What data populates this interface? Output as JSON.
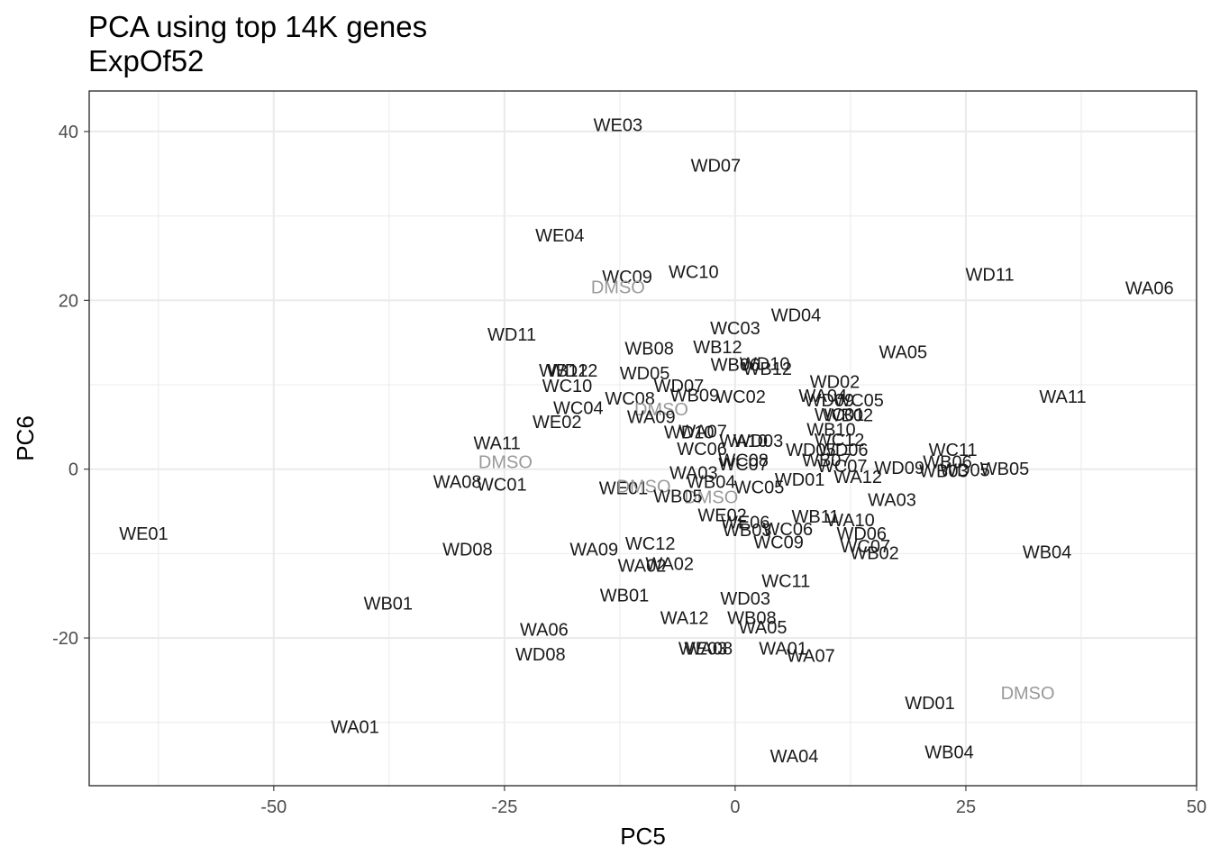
{
  "chart_data": {
    "type": "scatter",
    "title": "PCA using top 14K genes",
    "subtitle": "ExpOf52",
    "xlabel": "PC5",
    "ylabel": "PC6",
    "xlim": [
      -70,
      50
    ],
    "ylim": [
      -37.5,
      44.8
    ],
    "xticks": [
      -50,
      -25,
      0,
      25,
      50
    ],
    "xtick_labels": [
      "-50",
      "-25",
      "0",
      "25",
      "50"
    ],
    "yticks": [
      -20,
      0,
      20,
      40
    ],
    "ytick_labels": [
      "-20",
      "0",
      "20",
      "40"
    ],
    "xminor": [
      -62.5,
      -37.5,
      -12.5,
      12.5,
      37.5
    ],
    "yminor": [
      -30,
      -10,
      10,
      30
    ],
    "grid": true,
    "colors": {
      "sample": "#1a1a1a",
      "control": "#999999"
    },
    "points": [
      {
        "label": "WE03",
        "x": -12.7,
        "y": 40.8,
        "group": "sample"
      },
      {
        "label": "WD07",
        "x": -2.1,
        "y": 36.0,
        "group": "sample"
      },
      {
        "label": "WE04",
        "x": -19.0,
        "y": 27.7,
        "group": "sample"
      },
      {
        "label": "WC09",
        "x": -11.7,
        "y": 22.8,
        "group": "sample"
      },
      {
        "label": "DMSO",
        "x": -12.7,
        "y": 21.6,
        "group": "control"
      },
      {
        "label": "WC10",
        "x": -4.5,
        "y": 23.4,
        "group": "sample"
      },
      {
        "label": "WD11",
        "x": 27.6,
        "y": 23.1,
        "group": "sample"
      },
      {
        "label": "WA06",
        "x": 44.9,
        "y": 21.5,
        "group": "sample"
      },
      {
        "label": "WD04",
        "x": 6.6,
        "y": 18.3,
        "group": "sample"
      },
      {
        "label": "WC03",
        "x": 0.0,
        "y": 16.7,
        "group": "sample"
      },
      {
        "label": "WD11",
        "x": -24.2,
        "y": 16.0,
        "group": "sample"
      },
      {
        "label": "WB08",
        "x": -9.3,
        "y": 14.3,
        "group": "sample"
      },
      {
        "label": "WB12",
        "x": -1.9,
        "y": 14.5,
        "group": "sample"
      },
      {
        "label": "WA05",
        "x": 18.2,
        "y": 13.9,
        "group": "sample"
      },
      {
        "label": "WB06",
        "x": 0.0,
        "y": 12.4,
        "group": "sample"
      },
      {
        "label": "WD10",
        "x": 3.2,
        "y": 12.5,
        "group": "sample"
      },
      {
        "label": "WB12",
        "x": 3.5,
        "y": 11.9,
        "group": "sample"
      },
      {
        "label": "WB12",
        "x": -18.6,
        "y": 11.7,
        "group": "sample"
      },
      {
        "label": "WD12",
        "x": -17.6,
        "y": 11.7,
        "group": "sample"
      },
      {
        "label": "WD05",
        "x": -9.8,
        "y": 11.4,
        "group": "sample"
      },
      {
        "label": "WD02",
        "x": 10.8,
        "y": 10.4,
        "group": "sample"
      },
      {
        "label": "WD07",
        "x": -6.1,
        "y": 9.9,
        "group": "sample"
      },
      {
        "label": "WC10",
        "x": -18.2,
        "y": 9.9,
        "group": "sample"
      },
      {
        "label": "WA11",
        "x": 35.5,
        "y": 8.6,
        "group": "sample"
      },
      {
        "label": "WB09",
        "x": -4.4,
        "y": 8.8,
        "group": "sample"
      },
      {
        "label": "WC02",
        "x": 0.6,
        "y": 8.6,
        "group": "sample"
      },
      {
        "label": "WA04",
        "x": 9.5,
        "y": 8.7,
        "group": "sample"
      },
      {
        "label": "WD09",
        "x": 10.2,
        "y": 8.2,
        "group": "sample"
      },
      {
        "label": "WC05",
        "x": 13.4,
        "y": 8.2,
        "group": "sample"
      },
      {
        "label": "WC08",
        "x": -11.4,
        "y": 8.4,
        "group": "sample"
      },
      {
        "label": "WC04",
        "x": -17.0,
        "y": 7.3,
        "group": "sample"
      },
      {
        "label": "DMSO",
        "x": -8.0,
        "y": 7.1,
        "group": "control"
      },
      {
        "label": "WA09",
        "x": -9.1,
        "y": 6.2,
        "group": "sample"
      },
      {
        "label": "WC01",
        "x": 11.3,
        "y": 6.5,
        "group": "sample"
      },
      {
        "label": "WB02",
        "x": 12.3,
        "y": 6.4,
        "group": "sample"
      },
      {
        "label": "WE02",
        "x": -19.3,
        "y": 5.6,
        "group": "sample"
      },
      {
        "label": "WA07",
        "x": -3.5,
        "y": 4.5,
        "group": "sample"
      },
      {
        "label": "WD10",
        "x": -5.0,
        "y": 4.4,
        "group": "sample"
      },
      {
        "label": "WB10",
        "x": 10.4,
        "y": 4.7,
        "group": "sample"
      },
      {
        "label": "WA10",
        "x": 0.9,
        "y": 3.4,
        "group": "sample"
      },
      {
        "label": "WD03",
        "x": 2.5,
        "y": 3.4,
        "group": "sample"
      },
      {
        "label": "WC12",
        "x": 11.3,
        "y": 3.5,
        "group": "sample"
      },
      {
        "label": "WA11",
        "x": -25.8,
        "y": 3.1,
        "group": "sample"
      },
      {
        "label": "WC06",
        "x": -3.6,
        "y": 2.4,
        "group": "sample"
      },
      {
        "label": "WD05",
        "x": 8.2,
        "y": 2.3,
        "group": "sample"
      },
      {
        "label": "WD06",
        "x": 11.7,
        "y": 2.3,
        "group": "sample"
      },
      {
        "label": "WC08",
        "x": 0.9,
        "y": 1.1,
        "group": "sample"
      },
      {
        "label": "WB07",
        "x": 9.9,
        "y": 1.1,
        "group": "sample"
      },
      {
        "label": "WC07",
        "x": 0.9,
        "y": 0.6,
        "group": "sample"
      },
      {
        "label": "DMSO",
        "x": -24.9,
        "y": 0.9,
        "group": "control"
      },
      {
        "label": "WC11",
        "x": 23.6,
        "y": 2.3,
        "group": "sample"
      },
      {
        "label": "WB06",
        "x": 23.0,
        "y": 0.9,
        "group": "sample"
      },
      {
        "label": "WD09",
        "x": 17.8,
        "y": 0.2,
        "group": "sample"
      },
      {
        "label": "WB03",
        "x": 22.6,
        "y": -0.2,
        "group": "sample"
      },
      {
        "label": "WD05",
        "x": 24.9,
        "y": -0.1,
        "group": "sample"
      },
      {
        "label": "WB05",
        "x": 29.2,
        "y": 0.1,
        "group": "sample"
      },
      {
        "label": "WC07",
        "x": 11.6,
        "y": 0.4,
        "group": "sample"
      },
      {
        "label": "WA12",
        "x": 13.3,
        "y": -0.9,
        "group": "sample"
      },
      {
        "label": "WA03",
        "x": -4.5,
        "y": -0.4,
        "group": "sample"
      },
      {
        "label": "WD01",
        "x": 7.0,
        "y": -1.2,
        "group": "sample"
      },
      {
        "label": "WB04",
        "x": -2.6,
        "y": -1.5,
        "group": "sample"
      },
      {
        "label": "WA08",
        "x": -30.1,
        "y": -1.5,
        "group": "sample"
      },
      {
        "label": "WC01",
        "x": -25.3,
        "y": -1.8,
        "group": "sample"
      },
      {
        "label": "WE01",
        "x": -12.1,
        "y": -2.2,
        "group": "sample"
      },
      {
        "label": "DMSO",
        "x": -9.9,
        "y": -2.0,
        "group": "control"
      },
      {
        "label": "WC05",
        "x": 2.6,
        "y": -2.1,
        "group": "sample"
      },
      {
        "label": "DMSO",
        "x": -2.6,
        "y": -3.3,
        "group": "control"
      },
      {
        "label": "WB05",
        "x": -6.2,
        "y": -3.2,
        "group": "sample"
      },
      {
        "label": "WA03",
        "x": 17.0,
        "y": -3.6,
        "group": "sample"
      },
      {
        "label": "WE02",
        "x": -1.4,
        "y": -5.4,
        "group": "sample"
      },
      {
        "label": "WB11",
        "x": 8.7,
        "y": -5.6,
        "group": "sample"
      },
      {
        "label": "WA10",
        "x": 12.5,
        "y": -6.0,
        "group": "sample"
      },
      {
        "label": "WE06",
        "x": 1.1,
        "y": -6.3,
        "group": "sample"
      },
      {
        "label": "WC06",
        "x": 5.7,
        "y": -7.1,
        "group": "sample"
      },
      {
        "label": "WB03",
        "x": 1.3,
        "y": -7.2,
        "group": "sample"
      },
      {
        "label": "WD06",
        "x": 13.7,
        "y": -7.6,
        "group": "sample"
      },
      {
        "label": "WE01",
        "x": -64.1,
        "y": -7.6,
        "group": "sample"
      },
      {
        "label": "WC09",
        "x": 4.7,
        "y": -8.6,
        "group": "sample"
      },
      {
        "label": "WC12",
        "x": -9.2,
        "y": -8.8,
        "group": "sample"
      },
      {
        "label": "WC07",
        "x": 14.1,
        "y": -9.1,
        "group": "sample"
      },
      {
        "label": "WB02",
        "x": 15.1,
        "y": -9.9,
        "group": "sample"
      },
      {
        "label": "WD08",
        "x": -29.0,
        "y": -9.5,
        "group": "sample"
      },
      {
        "label": "WA09",
        "x": -15.3,
        "y": -9.5,
        "group": "sample"
      },
      {
        "label": "WB04",
        "x": 33.8,
        "y": -9.8,
        "group": "sample"
      },
      {
        "label": "WA02",
        "x": -10.1,
        "y": -11.4,
        "group": "sample"
      },
      {
        "label": "WA02",
        "x": -7.1,
        "y": -11.2,
        "group": "sample"
      },
      {
        "label": "WC11",
        "x": 5.5,
        "y": -13.2,
        "group": "sample"
      },
      {
        "label": "WB01",
        "x": -12.0,
        "y": -14.9,
        "group": "sample"
      },
      {
        "label": "WD03",
        "x": 1.1,
        "y": -15.3,
        "group": "sample"
      },
      {
        "label": "WB01",
        "x": -37.6,
        "y": -15.9,
        "group": "sample"
      },
      {
        "label": "WA12",
        "x": -5.5,
        "y": -17.6,
        "group": "sample"
      },
      {
        "label": "WB08",
        "x": 1.8,
        "y": -17.6,
        "group": "sample"
      },
      {
        "label": "WA05",
        "x": 3.0,
        "y": -18.7,
        "group": "sample"
      },
      {
        "label": "WA06",
        "x": -20.7,
        "y": -19.0,
        "group": "sample"
      },
      {
        "label": "WA08",
        "x": -2.9,
        "y": -21.2,
        "group": "sample"
      },
      {
        "label": "WE03",
        "x": -3.5,
        "y": -21.2,
        "group": "sample"
      },
      {
        "label": "WA01",
        "x": 5.2,
        "y": -21.2,
        "group": "sample"
      },
      {
        "label": "WD08",
        "x": -21.1,
        "y": -21.9,
        "group": "sample"
      },
      {
        "label": "WA07",
        "x": 8.2,
        "y": -22.1,
        "group": "sample"
      },
      {
        "label": "DMSO",
        "x": 31.7,
        "y": -26.5,
        "group": "control"
      },
      {
        "label": "WD01",
        "x": 21.1,
        "y": -27.7,
        "group": "sample"
      },
      {
        "label": "WA01",
        "x": -41.2,
        "y": -30.5,
        "group": "sample"
      },
      {
        "label": "WB04",
        "x": 23.2,
        "y": -33.5,
        "group": "sample"
      },
      {
        "label": "WA04",
        "x": 6.4,
        "y": -34.0,
        "group": "sample"
      }
    ]
  }
}
